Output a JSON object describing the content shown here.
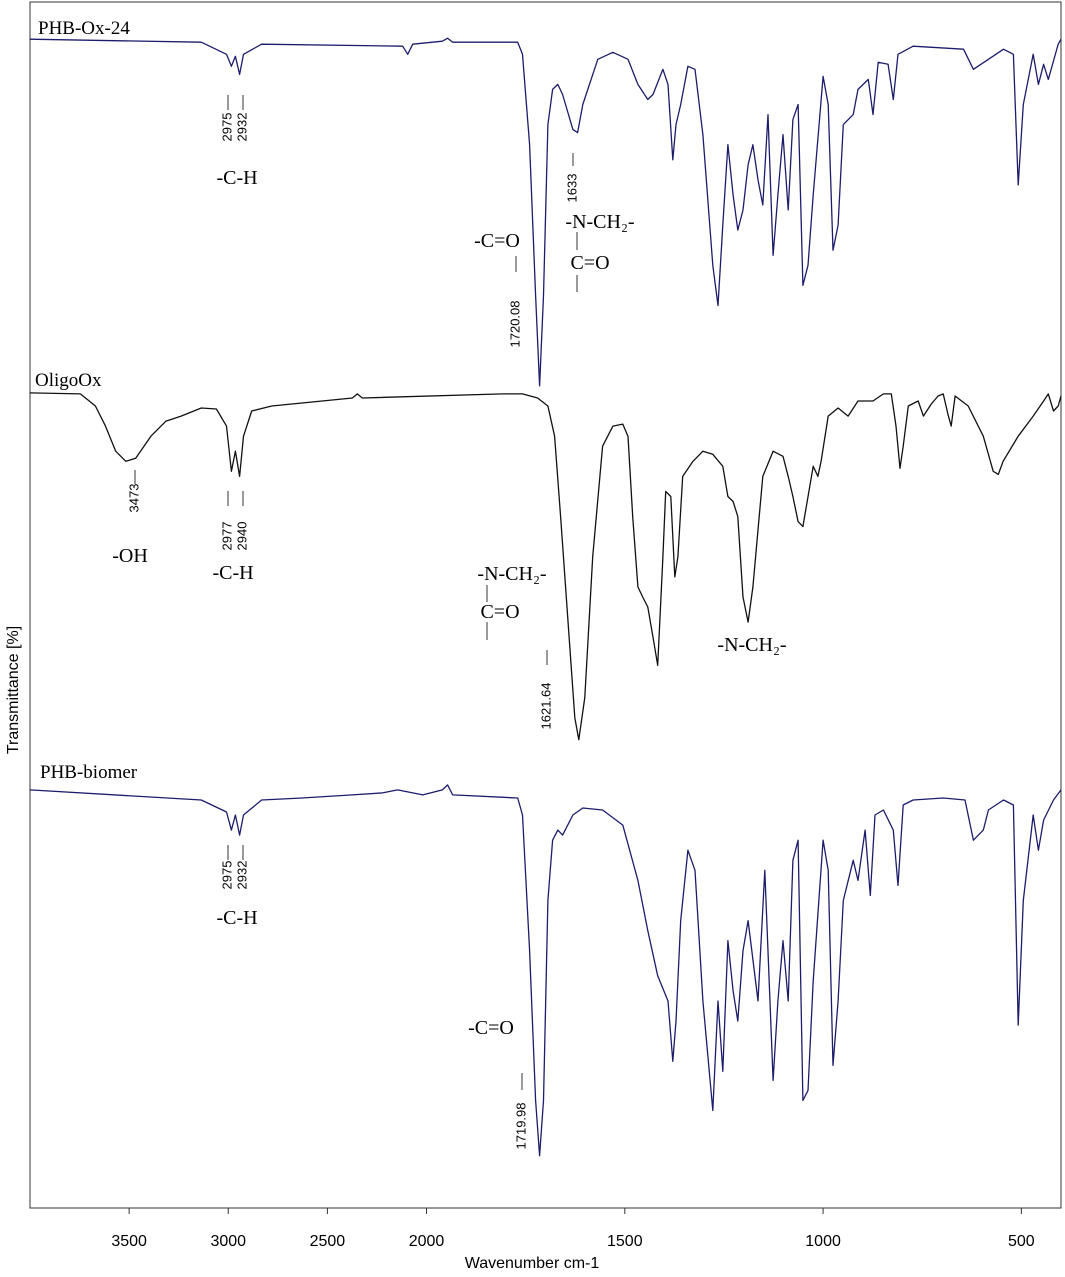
{
  "chart_data": {
    "type": "line",
    "xlabel": "Wavenumber cm-1",
    "ylabel": "Transmittance [%]",
    "xlim": [
      4000,
      400
    ],
    "ylim": [
      0,
      120
    ],
    "x_expanded_below": 2000,
    "x_expansion": 2,
    "xticks": [
      3500,
      3000,
      2500,
      2000,
      1500,
      1000,
      500
    ],
    "series": [
      {
        "name": "PHB-Ox-24",
        "color": "#1c1c6b",
        "x": [
          4000,
          3136,
          3009,
          2984,
          2964,
          2943,
          2923,
          2832,
          2120,
          2095,
          2070,
          1960,
          1947,
          1934,
          1770,
          1758,
          1740,
          1725,
          1715,
          1705,
          1694,
          1682,
          1669,
          1657,
          1631,
          1619,
          1606,
          1568,
          1530,
          1492,
          1467,
          1442,
          1429,
          1404,
          1391,
          1379,
          1371,
          1359,
          1341,
          1323,
          1303,
          1278,
          1265,
          1253,
          1240,
          1227,
          1215,
          1202,
          1189,
          1177,
          1164,
          1152,
          1139,
          1126,
          1114,
          1101,
          1088,
          1076,
          1063,
          1051,
          1038,
          1025,
          1000,
          987,
          975,
          962,
          949,
          924,
          912,
          886,
          874,
          861,
          836,
          823,
          811,
          773,
          646,
          621,
          583,
          545,
          520,
          508,
          495,
          470,
          457,
          444,
          432,
          407,
          400
        ],
        "values": [
          116.3,
          116,
          114.8,
          113.6,
          114.6,
          112.8,
          114.8,
          115.8,
          115.6,
          114.8,
          115.8,
          116.1,
          116.4,
          116,
          116,
          114.8,
          105.8,
          90.8,
          81.8,
          90.8,
          107.8,
          111.3,
          111.8,
          110.8,
          107.3,
          107,
          109.8,
          114.3,
          115,
          114.3,
          111.8,
          110.3,
          110.8,
          113.3,
          111.8,
          104.3,
          107.8,
          109.8,
          113.6,
          113.3,
          106.8,
          93.8,
          89.8,
          97.8,
          105.8,
          100.8,
          97.3,
          99.3,
          103.8,
          105.8,
          102.3,
          99.8,
          108.8,
          94.8,
          100.8,
          106.8,
          99.3,
          108.3,
          109.8,
          91.8,
          93.8,
          100.8,
          112.6,
          109.8,
          95.3,
          97.8,
          107.8,
          108.8,
          111.3,
          112.3,
          108.8,
          114,
          113.8,
          110.3,
          114.8,
          115.6,
          115.3,
          113.3,
          114.3,
          115.3,
          114.8,
          101.8,
          109.8,
          114.8,
          111.8,
          113.8,
          112.3,
          115.8,
          116.3
        ]
      },
      {
        "name": "OligoOx",
        "color": "#111111",
        "x": [
          4000,
          3746,
          3670,
          3619,
          3568,
          3517,
          3467,
          3390,
          3314,
          3238,
          3136,
          3060,
          3009,
          2984,
          2964,
          2943,
          2923,
          2882,
          2781,
          2374,
          2349,
          2324,
          1808,
          1758,
          1720,
          1694,
          1677,
          1662,
          1644,
          1626,
          1616,
          1601,
          1581,
          1556,
          1530,
          1505,
          1492,
          1480,
          1467,
          1455,
          1442,
          1429,
          1417,
          1404,
          1397,
          1384,
          1374,
          1366,
          1354,
          1328,
          1303,
          1278,
          1253,
          1240,
          1227,
          1215,
          1202,
          1189,
          1177,
          1152,
          1126,
          1101,
          1088,
          1076,
          1063,
          1051,
          1025,
          1013,
          1005,
          987,
          962,
          937,
          912,
          874,
          848,
          828,
          816,
          806,
          798,
          785,
          760,
          747,
          727,
          710,
          697,
          684,
          677,
          667,
          634,
          596,
          571,
          558,
          546,
          508,
          470,
          444,
          432,
          419,
          407,
          400
        ],
        "values": [
          81.1,
          81,
          79.8,
          77.8,
          75.3,
          74.3,
          74.6,
          76.8,
          78.3,
          78.8,
          79.6,
          79.5,
          77.8,
          73.3,
          75.3,
          72.8,
          76.8,
          79.3,
          79.8,
          80.6,
          81,
          80.6,
          81,
          81,
          80.6,
          79.8,
          76.8,
          68.8,
          58.8,
          48.8,
          46.6,
          50.8,
          64.8,
          75.8,
          77.8,
          78,
          76.8,
          68.8,
          61.8,
          60.8,
          59.8,
          56.8,
          54,
          64.8,
          71.3,
          70.8,
          62.8,
          64.8,
          72.8,
          74.3,
          75.3,
          75,
          73.8,
          70.8,
          70.3,
          68.8,
          60.8,
          58.3,
          61.8,
          72.8,
          75.3,
          74.8,
          72.8,
          70.8,
          68.3,
          67.8,
          73.8,
          72.8,
          74.3,
          78.8,
          79.6,
          78.8,
          80.3,
          80.3,
          81,
          81,
          77.8,
          73.6,
          75.8,
          79.8,
          80.3,
          78.8,
          80,
          80.8,
          81,
          78.8,
          77.8,
          80.8,
          79.8,
          76.8,
          73.3,
          73,
          74.3,
          76.8,
          78.8,
          80.3,
          81,
          79.3,
          79.8,
          80.8
        ]
      },
      {
        "name": "PHB-biomer",
        "color": "#1c1c6b",
        "x": [
          4000,
          3136,
          3009,
          2984,
          2964,
          2943,
          2923,
          2832,
          2628,
          2374,
          2222,
          2146,
          2019,
          1960,
          1947,
          1934,
          1770,
          1758,
          1740,
          1725,
          1715,
          1705,
          1694,
          1682,
          1669,
          1657,
          1631,
          1606,
          1556,
          1505,
          1467,
          1442,
          1417,
          1391,
          1379,
          1371,
          1359,
          1341,
          1323,
          1303,
          1278,
          1265,
          1253,
          1240,
          1227,
          1215,
          1202,
          1189,
          1164,
          1147,
          1126,
          1114,
          1101,
          1088,
          1076,
          1063,
          1051,
          1038,
          1025,
          1000,
          987,
          975,
          962,
          949,
          924,
          912,
          894,
          881,
          869,
          848,
          823,
          811,
          798,
          773,
          697,
          642,
          621,
          596,
          583,
          545,
          520,
          508,
          495,
          470,
          457,
          444,
          419,
          400
        ],
        "values": [
          41.6,
          40.6,
          39.4,
          37.6,
          39.1,
          37.1,
          39.1,
          40.6,
          40.8,
          41.1,
          41.3,
          41.6,
          41.1,
          41.6,
          42.1,
          41.1,
          40.8,
          39.1,
          25.6,
          10.7,
          5.2,
          10.7,
          30.6,
          36.6,
          37.6,
          37.1,
          39.1,
          39.8,
          39.6,
          38.1,
          32.6,
          27.6,
          23.1,
          20.6,
          14.6,
          18.6,
          28.6,
          35.6,
          33.6,
          20.6,
          9.7,
          20.6,
          13.6,
          26.6,
          21.6,
          18.6,
          25.6,
          28.6,
          20.6,
          33.6,
          12.7,
          20.6,
          26.6,
          20.6,
          34.6,
          36.6,
          10.7,
          11.7,
          22.6,
          36.6,
          33.6,
          14.2,
          20.6,
          30.6,
          34.6,
          32.6,
          37.6,
          31.1,
          39.1,
          39.6,
          37.6,
          32.1,
          40.1,
          40.6,
          40.8,
          40.6,
          36.6,
          37.6,
          39.6,
          40.6,
          40.1,
          18.2,
          30.6,
          39.1,
          35.6,
          38.6,
          40.6,
          41.6
        ]
      }
    ],
    "annotations": [
      "2975",
      "2932",
      "-C-H",
      "1633",
      "-N-CH₂-",
      "C=O",
      "-C=O",
      "1720.08",
      "3473",
      "2977",
      "2940",
      "-OH",
      "-C-H",
      "-N-CH₂-",
      "C=O",
      "1621.64",
      "-N-CH₂-",
      "2975",
      "2932",
      "-C-H",
      "-C=O",
      "1719.98"
    ]
  }
}
